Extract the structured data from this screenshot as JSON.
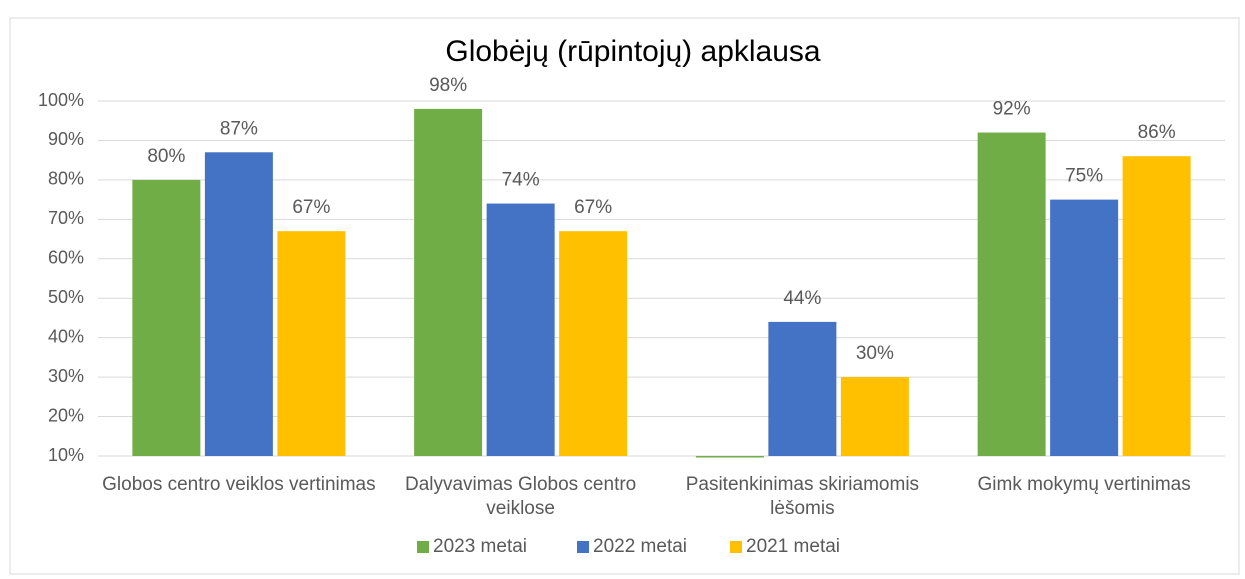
{
  "chart_data": {
    "type": "bar",
    "title": "Globėjų (rūpintojų) apklausa",
    "categories": [
      "Globos centro veiklos vertinimas",
      "Dalyvavimas Globos centro veiklose",
      "Pasitenkinimas skiriamomis lėšomis",
      "Gimk mokymų vertinimas"
    ],
    "series": [
      {
        "name": "2023 metai",
        "color": "#70ad47",
        "values": [
          80,
          98,
          10,
          92
        ],
        "value_labels": [
          "80%",
          "98%",
          null,
          "92%"
        ]
      },
      {
        "name": "2022 metai",
        "color": "#4472c4",
        "values": [
          87,
          74,
          44,
          75
        ],
        "value_labels": [
          "87%",
          "74%",
          "44%",
          "75%"
        ]
      },
      {
        "name": "2021 metai",
        "color": "#ffc000",
        "values": [
          67,
          67,
          30,
          86
        ],
        "value_labels": [
          "67%",
          "67%",
          "30%",
          "86%"
        ]
      }
    ],
    "ylim": [
      10,
      100
    ],
    "yticks": [
      {
        "value": 10,
        "label": "10%"
      },
      {
        "value": 20,
        "label": "20%"
      },
      {
        "value": 30,
        "label": "30%"
      },
      {
        "value": 40,
        "label": "40%"
      },
      {
        "value": 50,
        "label": "50%"
      },
      {
        "value": 60,
        "label": "60%"
      },
      {
        "value": 70,
        "label": "70%"
      },
      {
        "value": 80,
        "label": "80%"
      },
      {
        "value": 90,
        "label": "90%"
      },
      {
        "value": 100,
        "label": "100%"
      }
    ],
    "grid": true,
    "legend": "bottom"
  }
}
